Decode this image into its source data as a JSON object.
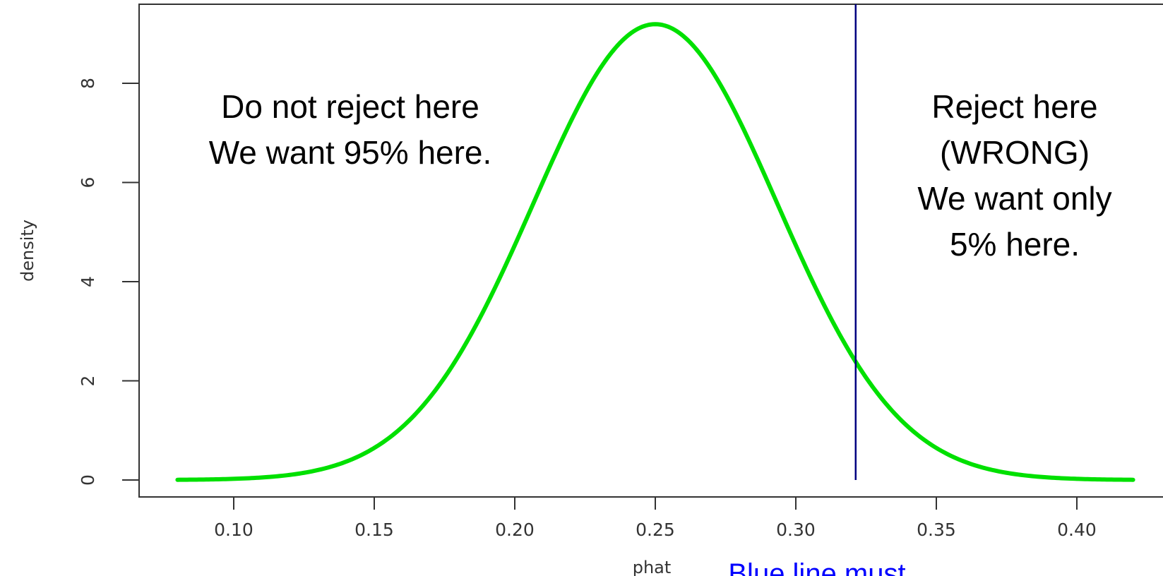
{
  "chart_data": {
    "type": "line",
    "title": "",
    "xlabel": "phat",
    "ylabel": "density",
    "xlim": [
      0.08,
      0.42
    ],
    "ylim": [
      0,
      9.2
    ],
    "x_ticks": [
      0.1,
      0.15,
      0.2,
      0.25,
      0.3,
      0.35,
      0.4
    ],
    "x_tick_labels": [
      "0.10",
      "0.15",
      "0.20",
      "0.25",
      "0.30",
      "0.35",
      "0.40"
    ],
    "y_ticks": [
      0,
      2,
      4,
      6,
      8
    ],
    "y_tick_labels": [
      "0",
      "2",
      "4",
      "6",
      "8"
    ],
    "grid": false,
    "series": [
      {
        "color": "#00e000",
        "distribution": "normal",
        "mean": 0.25,
        "sd": 0.0434,
        "x_start": 0.08,
        "x_end": 0.42
      }
    ],
    "vline": {
      "x": 0.3213,
      "color": "#000080"
    },
    "annotations": {
      "left": [
        "Do not reject here",
        "We want 95% here."
      ],
      "right": [
        "Reject here",
        "(WRONG)",
        "We want only",
        "5% here."
      ],
      "bottom": "Blue line must"
    }
  }
}
